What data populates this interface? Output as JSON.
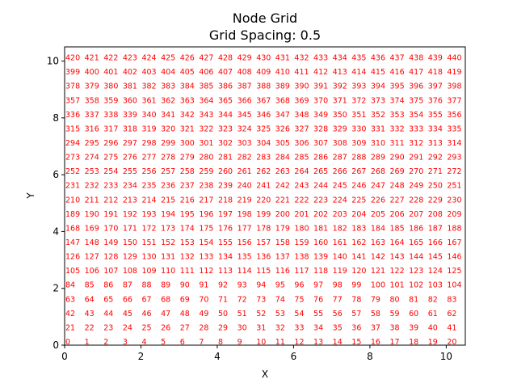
{
  "chart_data": {
    "type": "scatter",
    "title": "Node Grid",
    "subtitle": "Grid Spacing: 0.5",
    "xlabel": "X",
    "ylabel": "Y",
    "xlim": [
      0,
      10.5
    ],
    "ylim": [
      0,
      10.5
    ],
    "xticks": [
      0,
      2,
      4,
      6,
      8,
      10
    ],
    "yticks": [
      0,
      2,
      4,
      6,
      8,
      10
    ],
    "grid": false,
    "grid_spacing": 0.5,
    "nodes_per_row": 21,
    "rows": 21,
    "x_start": 0,
    "y_start": 0,
    "label_color": "#ff0000",
    "label_rule": "node index = row * 21 + column, labelled at (column * 0.5, row * 0.5)"
  }
}
